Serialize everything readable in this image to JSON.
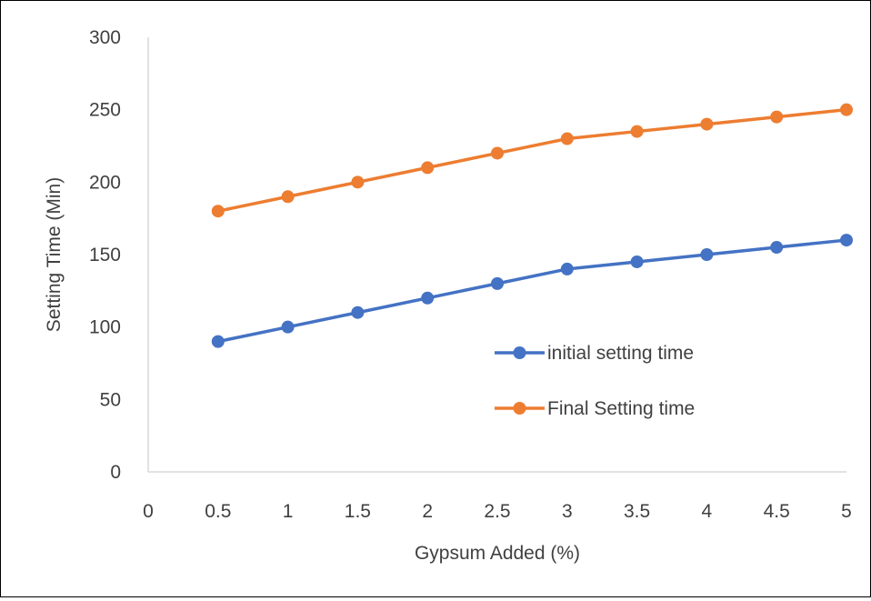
{
  "chart_data": {
    "type": "line",
    "title": "",
    "xlabel": "Gypsum Added (%)",
    "ylabel": "Setting Time (Min)",
    "xlim": [
      0,
      5
    ],
    "ylim": [
      0,
      300
    ],
    "x_ticks": [
      "0",
      "0.5",
      "1",
      "1.5",
      "2",
      "2.5",
      "3",
      "3.5",
      "4",
      "4.5",
      "5"
    ],
    "y_ticks": [
      "0",
      "50",
      "100",
      "150",
      "200",
      "250",
      "300"
    ],
    "x": [
      0.5,
      1,
      1.5,
      2,
      2.5,
      3,
      3.5,
      4,
      4.5,
      5
    ],
    "series": [
      {
        "name": "initial setting time",
        "color": "#4472C4",
        "values": [
          90,
          100,
          110,
          120,
          130,
          140,
          145,
          150,
          155,
          160
        ]
      },
      {
        "name": "Final Setting time",
        "color": "#ED7D31",
        "values": [
          180,
          190,
          200,
          210,
          220,
          230,
          235,
          240,
          245,
          250
        ]
      }
    ],
    "grid": false,
    "legend_position": "right"
  }
}
